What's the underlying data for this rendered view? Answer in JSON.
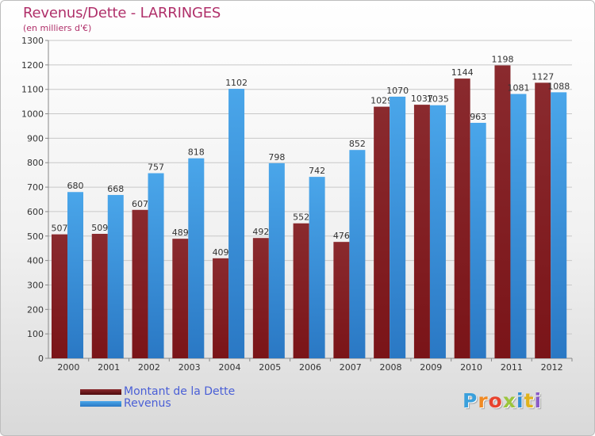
{
  "header": {
    "title": "Revenus/Dette - LARRINGES",
    "subtitle": "(en milliers d'€)"
  },
  "colors": {
    "dette": "#7a1418",
    "revenus": "#3a95dd",
    "title": "#b0306a",
    "legend_text": "#4a5fd6"
  },
  "chart_data": {
    "type": "bar",
    "categories": [
      "2000",
      "2001",
      "2002",
      "2003",
      "2004",
      "2005",
      "2006",
      "2007",
      "2008",
      "2009",
      "2010",
      "2011",
      "2012"
    ],
    "series": [
      {
        "name": "Montant de la Dette",
        "values": [
          507,
          509,
          607,
          489,
          409,
          492,
          552,
          476,
          1029,
          1037,
          1144,
          1198,
          1127
        ]
      },
      {
        "name": "Revenus",
        "values": [
          680,
          668,
          757,
          818,
          1102,
          798,
          742,
          852,
          1070,
          1035,
          963,
          1081,
          1088
        ]
      }
    ],
    "ylim": [
      0,
      1300
    ],
    "yticks": [
      0,
      100,
      200,
      300,
      400,
      500,
      600,
      700,
      800,
      900,
      1000,
      1100,
      1200,
      1300
    ],
    "grid": true,
    "legend_position": "bottom-left"
  },
  "legend": {
    "items": [
      {
        "label": "Montant de la Dette"
      },
      {
        "label": "Revenus"
      }
    ]
  },
  "logo": {
    "letters": [
      "P",
      "r",
      "o",
      "x",
      "i",
      "t",
      "i"
    ],
    "colors": [
      "#3aa0dc",
      "#f08a24",
      "#e8432e",
      "#9bc53d",
      "#2f8fd6",
      "#e0b21c",
      "#8a5cc8"
    ]
  }
}
